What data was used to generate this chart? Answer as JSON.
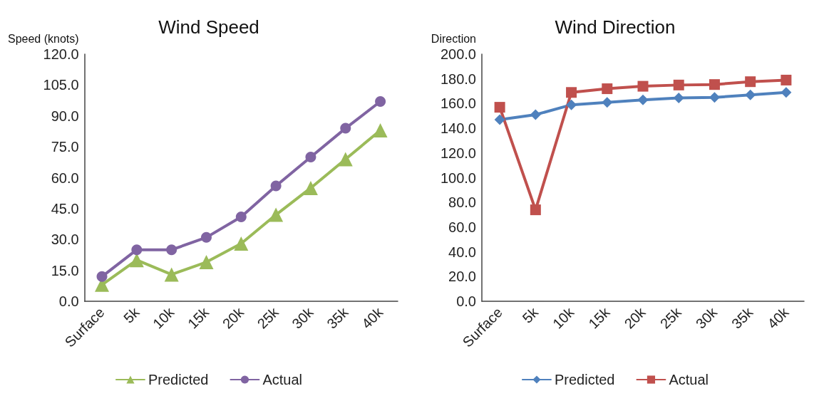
{
  "chart_data": [
    {
      "type": "line",
      "title": "Wind Speed",
      "ylabel": "Speed (knots)",
      "categories": [
        "Surface",
        "5k",
        "10k",
        "15k",
        "20k",
        "25k",
        "30k",
        "35k",
        "40k"
      ],
      "series": [
        {
          "name": "Predicted",
          "color": "#9bbb59",
          "marker": "triangle",
          "values": [
            8,
            20,
            13,
            19,
            28,
            42,
            55,
            69,
            83
          ]
        },
        {
          "name": "Actual",
          "color": "#8064a2",
          "marker": "circle",
          "values": [
            12,
            25,
            25,
            31,
            41,
            56,
            70,
            84,
            97
          ]
        }
      ],
      "ylim": [
        0,
        120
      ],
      "yticks": [
        {
          "value": 0,
          "label": "0.0"
        },
        {
          "value": 15,
          "label": "15.0"
        },
        {
          "value": 30,
          "label": "30.0"
        },
        {
          "value": 45,
          "label": "45.0"
        },
        {
          "value": 60,
          "label": "60.0"
        },
        {
          "value": 75,
          "label": "75.0"
        },
        {
          "value": 90,
          "label": "90.0"
        },
        {
          "value": 105,
          "label": "105.0"
        },
        {
          "value": 120,
          "label": "120.0"
        }
      ],
      "grid": false,
      "legend": "bottom",
      "line_style": "solid"
    },
    {
      "type": "line",
      "title": "Wind Direction",
      "ylabel": "Direction",
      "categories": [
        "Surface",
        "5k",
        "10k",
        "15k",
        "20k",
        "25k",
        "30k",
        "35k",
        "40k"
      ],
      "series": [
        {
          "name": "Predicted",
          "color": "#4f81bd",
          "marker": "diamond",
          "values": [
            147,
            151,
            159,
            161,
            163,
            164.6,
            165,
            167,
            169
          ]
        },
        {
          "name": "Actual",
          "color": "#c0504d",
          "marker": "square",
          "values": [
            157,
            74,
            169,
            172,
            174,
            175,
            175.4,
            177.7,
            179
          ]
        }
      ],
      "ylim": [
        0,
        200
      ],
      "yticks": [
        {
          "value": 0,
          "label": "0.0"
        },
        {
          "value": 20,
          "label": "20.0"
        },
        {
          "value": 40,
          "label": "40.0"
        },
        {
          "value": 60,
          "label": "60.0"
        },
        {
          "value": 80,
          "label": "80.0"
        },
        {
          "value": 100,
          "label": "100.0"
        },
        {
          "value": 120,
          "label": "120.0"
        },
        {
          "value": 140,
          "label": "140.0"
        },
        {
          "value": 160,
          "label": "160.0"
        },
        {
          "value": 180,
          "label": "180.0"
        },
        {
          "value": 200,
          "label": "200.0"
        }
      ],
      "grid": false,
      "legend": "bottom",
      "line_style": "solid"
    }
  ]
}
